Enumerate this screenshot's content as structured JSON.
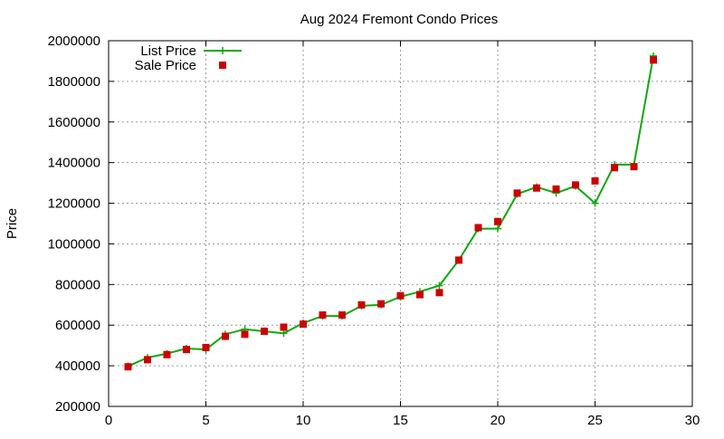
{
  "chart_data": {
    "type": "line",
    "title": "Aug 2024 Fremont Condo Prices",
    "xlabel": "",
    "ylabel": "Price",
    "xlim": [
      0,
      30
    ],
    "ylim": [
      200000,
      2000000
    ],
    "xticks": [
      0,
      5,
      10,
      15,
      20,
      25,
      30
    ],
    "yticks": [
      200000,
      400000,
      600000,
      800000,
      1000000,
      1200000,
      1400000,
      1600000,
      1800000,
      2000000
    ],
    "grid": true,
    "legend_position": "top-left",
    "series": [
      {
        "name": "List Price",
        "style": "line-plus",
        "color": "#0fa80f",
        "x": [
          1,
          2,
          3,
          4,
          5,
          6,
          7,
          8,
          9,
          10,
          11,
          12,
          13,
          14,
          15,
          16,
          17,
          18,
          19,
          20,
          21,
          22,
          23,
          24,
          25,
          26,
          27,
          28
        ],
        "y": [
          398000,
          440000,
          460000,
          485000,
          480000,
          555000,
          580000,
          570000,
          560000,
          610000,
          645000,
          645000,
          695000,
          700000,
          740000,
          765000,
          795000,
          920000,
          1075000,
          1075000,
          1245000,
          1280000,
          1250000,
          1285000,
          1200000,
          1390000,
          1390000,
          1925000
        ]
      },
      {
        "name": "Sale Price",
        "style": "square",
        "color": "#cc0000",
        "x": [
          1,
          2,
          3,
          4,
          5,
          6,
          7,
          8,
          9,
          10,
          11,
          12,
          13,
          14,
          15,
          16,
          17,
          18,
          19,
          20,
          21,
          22,
          23,
          24,
          25,
          26,
          27,
          28
        ],
        "y": [
          395000,
          430000,
          455000,
          480000,
          490000,
          545000,
          555000,
          570000,
          590000,
          605000,
          650000,
          650000,
          700000,
          705000,
          745000,
          750000,
          760000,
          920000,
          1080000,
          1110000,
          1250000,
          1275000,
          1270000,
          1290000,
          1310000,
          1375000,
          1380000,
          1905000
        ]
      }
    ]
  }
}
